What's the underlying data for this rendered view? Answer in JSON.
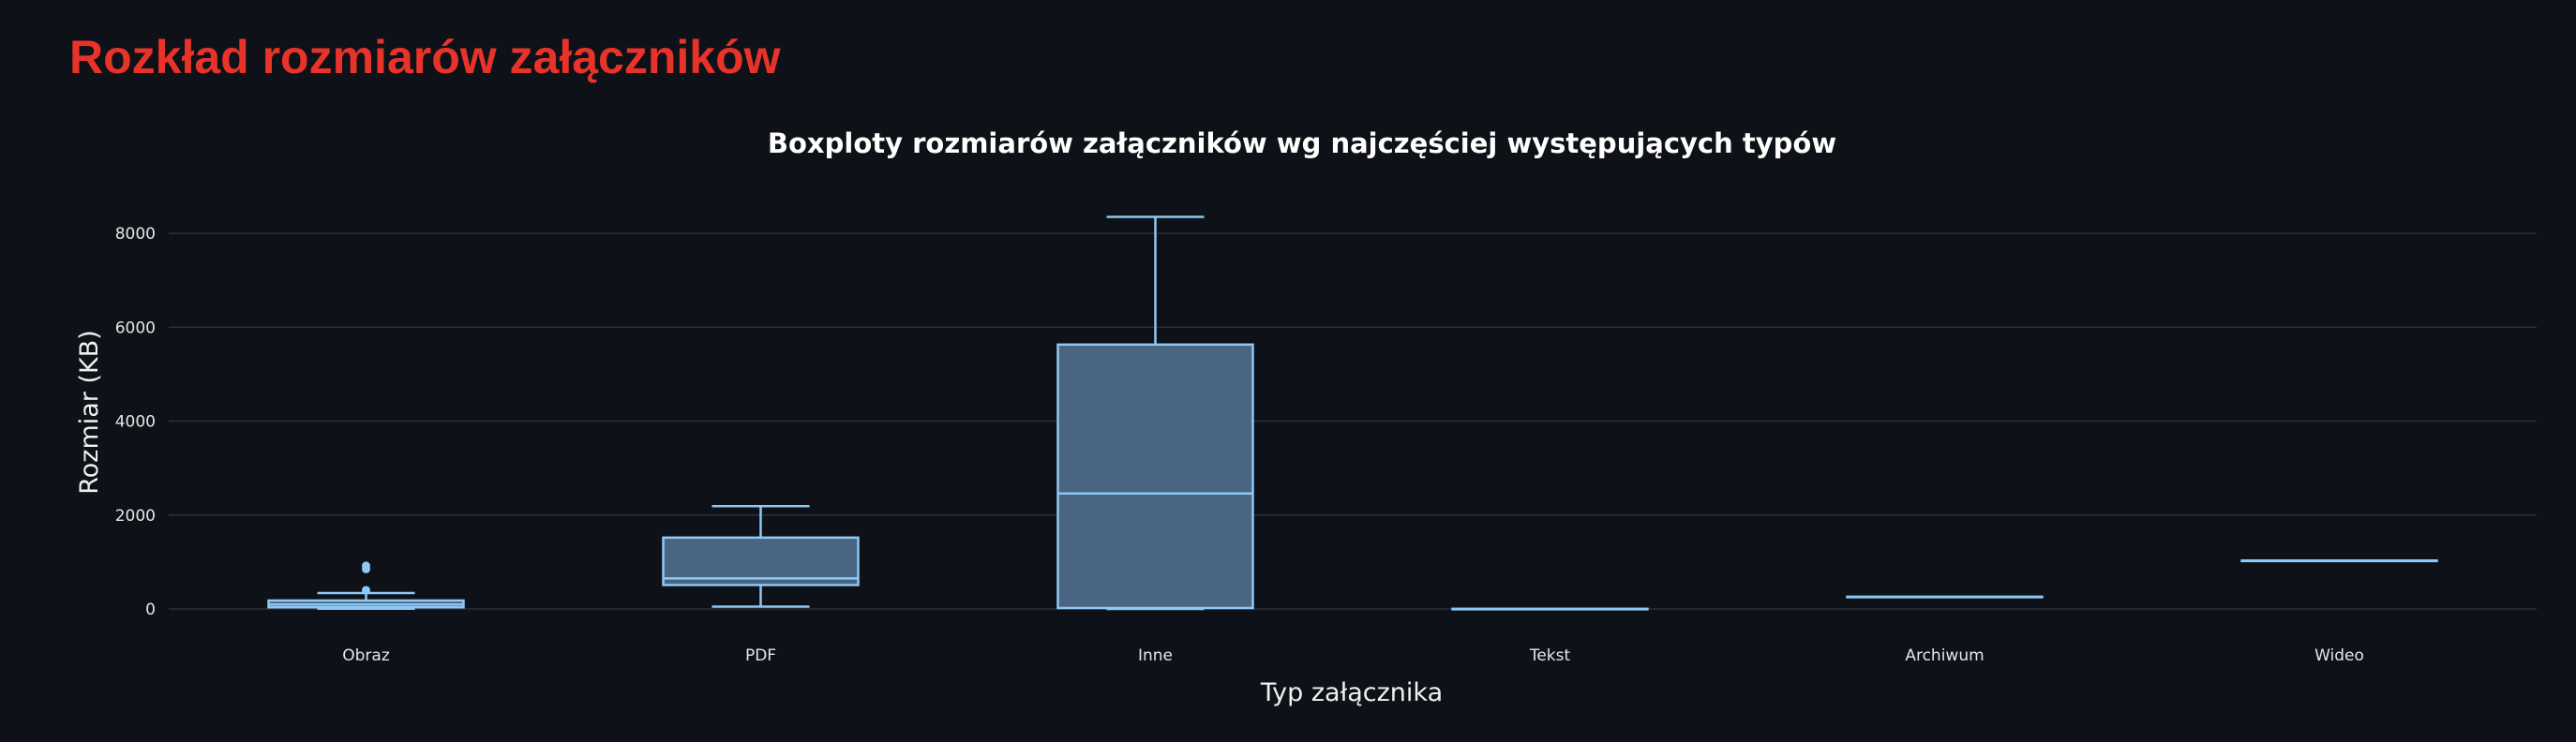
{
  "page": {
    "title": "Rozkład rozmiarów załączników"
  },
  "colors": {
    "background": "#0e1117",
    "title": "#e8332a",
    "box_fill": "#4e6a88",
    "box_stroke": "#8ec8f5",
    "grid": "#2a2f38"
  },
  "chart_data": {
    "type": "box",
    "title": "Boxploty rozmiarów załączników wg najczęściej występujących typów",
    "xlabel": "Typ załącznika",
    "ylabel": "Rozmiar (KB)",
    "ylim": [
      -700,
      8650
    ],
    "yticks": [
      0,
      2000,
      4000,
      6000,
      8000
    ],
    "grid": true,
    "categories": [
      "Obraz",
      "PDF",
      "Inne",
      "Tekst",
      "Archiwum",
      "Wideo"
    ],
    "boxes": [
      {
        "category": "Obraz",
        "min": 5,
        "q1": 35,
        "median": 95,
        "q3": 180,
        "max": 340,
        "outliers": [
          400,
          850,
          920
        ]
      },
      {
        "category": "PDF",
        "min": 50,
        "q1": 510,
        "median": 650,
        "q3": 1520,
        "max": 2190,
        "outliers": []
      },
      {
        "category": "Inne",
        "min": 0,
        "q1": 20,
        "median": 2460,
        "q3": 5630,
        "max": 8350,
        "outliers": []
      },
      {
        "category": "Tekst",
        "min": 3,
        "q1": 3,
        "median": 3,
        "q3": 3,
        "max": 3,
        "outliers": []
      },
      {
        "category": "Archiwum",
        "min": 260,
        "q1": 260,
        "median": 260,
        "q3": 260,
        "max": 260,
        "outliers": []
      },
      {
        "category": "Wideo",
        "min": 1030,
        "q1": 1030,
        "median": 1030,
        "q3": 1030,
        "max": 1030,
        "outliers": []
      }
    ]
  }
}
